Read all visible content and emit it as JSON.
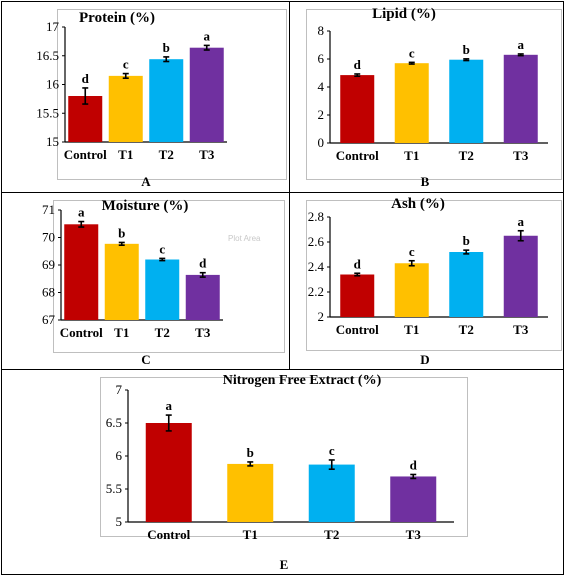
{
  "chart_data": [
    {
      "id": "A",
      "type": "bar",
      "title": "Protein (%)",
      "panel_label": "A",
      "categories": [
        "Control",
        "T1",
        "T2",
        "T3"
      ],
      "values": [
        15.8,
        16.15,
        16.44,
        16.64
      ],
      "errors": [
        0.14,
        0.04,
        0.04,
        0.04
      ],
      "letters": [
        "d",
        "c",
        "b",
        "a"
      ],
      "ylim": [
        15,
        17
      ],
      "yticks": [
        15,
        15.5,
        16,
        16.5,
        17
      ],
      "ytick_labels": [
        "15",
        "15.5",
        "16",
        "16.5",
        "17"
      ],
      "grid": false
    },
    {
      "id": "B",
      "type": "bar",
      "title": "Lipid (%)",
      "panel_label": "B",
      "categories": [
        "Control",
        "T1",
        "T2",
        "T3"
      ],
      "values": [
        4.85,
        5.7,
        5.95,
        6.3
      ],
      "errors": [
        0.08,
        0.06,
        0.06,
        0.06
      ],
      "letters": [
        "d",
        "c",
        "b",
        "a"
      ],
      "ylim": [
        0,
        8
      ],
      "yticks": [
        0,
        2,
        4,
        6,
        8
      ],
      "ytick_labels": [
        "0",
        "2",
        "4",
        "6",
        "8"
      ],
      "grid": false
    },
    {
      "id": "C",
      "type": "bar",
      "title": "Moisture (%)",
      "panel_label": "C",
      "plot_area_hint": "Plot Area",
      "categories": [
        "Control",
        "T1",
        "T2",
        "T3"
      ],
      "values": [
        70.48,
        69.77,
        69.2,
        68.64
      ],
      "errors": [
        0.1,
        0.05,
        0.04,
        0.08
      ],
      "letters": [
        "a",
        "b",
        "c",
        "d"
      ],
      "ylim": [
        67,
        71
      ],
      "yticks": [
        67,
        68,
        69,
        70,
        71
      ],
      "ytick_labels": [
        "67",
        "68",
        "69",
        "70",
        "71"
      ],
      "grid": false
    },
    {
      "id": "D",
      "type": "bar",
      "title": "Ash (%)",
      "panel_label": "D",
      "categories": [
        "Control",
        "T1",
        "T2",
        "T3"
      ],
      "values": [
        2.34,
        2.43,
        2.52,
        2.65
      ],
      "errors": [
        0.01,
        0.02,
        0.015,
        0.04
      ],
      "letters": [
        "d",
        "c",
        "b",
        "a"
      ],
      "ylim": [
        2,
        2.8
      ],
      "yticks": [
        2,
        2.2,
        2.4,
        2.6,
        2.8
      ],
      "ytick_labels": [
        "2",
        "2.2",
        "2.4",
        "2.6",
        "2.8"
      ],
      "grid": false
    },
    {
      "id": "E",
      "type": "bar",
      "title": "Nitrogen Free Extract (%)",
      "panel_label": "E",
      "categories": [
        "Control",
        "T1",
        "T2",
        "T3"
      ],
      "values": [
        6.5,
        5.88,
        5.87,
        5.69
      ],
      "errors": [
        0.12,
        0.03,
        0.07,
        0.03
      ],
      "letters": [
        "a",
        "b",
        "c",
        "d"
      ],
      "ylim": [
        5,
        7
      ],
      "yticks": [
        5,
        5.5,
        6,
        6.5,
        7
      ],
      "ytick_labels": [
        "5",
        "5.5",
        "6",
        "6.5",
        "7"
      ],
      "grid": false
    }
  ],
  "colors": {
    "bars": [
      "#c00000",
      "#ffc000",
      "#00b0f0",
      "#7030a0"
    ],
    "axis": "#000000",
    "text": "#000000"
  }
}
